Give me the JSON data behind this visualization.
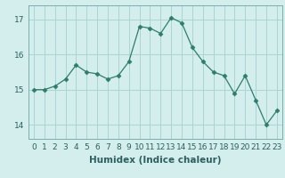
{
  "x": [
    0,
    1,
    2,
    3,
    4,
    5,
    6,
    7,
    8,
    9,
    10,
    11,
    12,
    13,
    14,
    15,
    16,
    17,
    18,
    19,
    20,
    21,
    22,
    23
  ],
  "y": [
    15.0,
    15.0,
    15.1,
    15.3,
    15.7,
    15.5,
    15.45,
    15.3,
    15.4,
    15.8,
    16.8,
    16.75,
    16.6,
    17.05,
    16.9,
    16.2,
    15.8,
    15.5,
    15.4,
    14.88,
    15.4,
    14.7,
    14.0,
    14.4
  ],
  "xlabel": "Humidex (Indice chaleur)",
  "line_color": "#2d7d6d",
  "marker": "D",
  "marker_size": 2.5,
  "bg_color": "#d4eeee",
  "grid_color": "#aad4d4",
  "ylim": [
    13.6,
    17.4
  ],
  "yticks": [
    14,
    15,
    16,
    17
  ],
  "xlim": [
    -0.5,
    23.5
  ],
  "xlabel_fontsize": 7.5,
  "tick_fontsize": 6.5
}
